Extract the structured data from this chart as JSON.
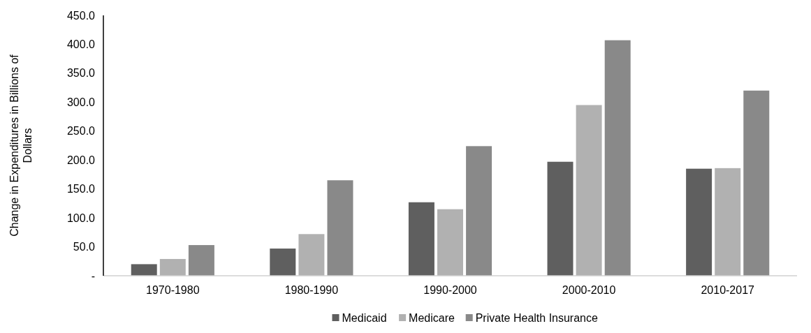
{
  "chart_data": {
    "type": "bar",
    "ylabel": "Change in Expenditures in Billions of Dollars",
    "categories": [
      "1970-1980",
      "1980-1990",
      "1990-2000",
      "2000-2010",
      "2010-2017"
    ],
    "series": [
      {
        "name": "Medicaid",
        "color": "#5f5f5f",
        "values": [
          20,
          47,
          127,
          197,
          185
        ]
      },
      {
        "name": "Medicare",
        "color": "#b1b1b1",
        "values": [
          29,
          72,
          115,
          295,
          186
        ]
      },
      {
        "name": "Private Health Insurance",
        "color": "#898989",
        "values": [
          53,
          165,
          224,
          407,
          320
        ]
      }
    ],
    "ylim": [
      0,
      450
    ],
    "yticks": [
      {
        "value": 0,
        "label": "-"
      },
      {
        "value": 50,
        "label": "50.0"
      },
      {
        "value": 100,
        "label": "100.0"
      },
      {
        "value": 150,
        "label": "150.0"
      },
      {
        "value": 200,
        "label": "200.0"
      },
      {
        "value": 250,
        "label": "250.0"
      },
      {
        "value": 300,
        "label": "300.0"
      },
      {
        "value": 350,
        "label": "350.0"
      },
      {
        "value": 400,
        "label": "400.0"
      },
      {
        "value": 450,
        "label": "450.0"
      }
    ],
    "grid": false,
    "legend": "bottom"
  }
}
